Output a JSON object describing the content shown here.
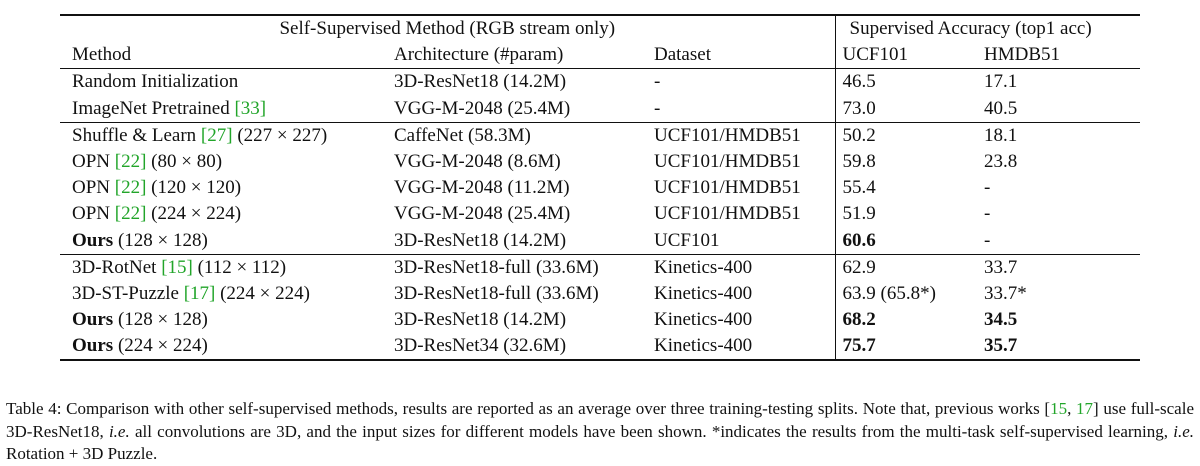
{
  "table": {
    "group_head_left": "Self-Supervised Method (RGB stream only)",
    "group_head_right": "Supervised Accuracy (top1 acc)",
    "col_method": "Method",
    "col_arch": "Architecture (#param)",
    "col_dataset": "Dataset",
    "col_ucf": "UCF101",
    "col_hmdb": "HMDB51",
    "rows": [
      {
        "m_b": "",
        "m_a": "Random Initialization",
        "m_r": "",
        "m_c": "",
        "arch": "3D-ResNet18 (14.2M)",
        "ds": "-",
        "ucf": "46.5",
        "hmdb": "17.1",
        "ucf_b": false,
        "hmdb_b": false
      },
      {
        "m_b": "",
        "m_a": "ImageNet Pretrained ",
        "m_r": "[33]",
        "m_c": "",
        "arch": "VGG-M-2048 (25.4M)",
        "ds": "-",
        "ucf": "73.0",
        "hmdb": "40.5",
        "ucf_b": false,
        "hmdb_b": false
      },
      {
        "m_b": "",
        "m_a": "Shuffle & Learn ",
        "m_r": "[27]",
        "m_c": " (227 × 227)",
        "arch": "CaffeNet (58.3M)",
        "ds": "UCF101/HMDB51",
        "ucf": "50.2",
        "hmdb": "18.1",
        "ucf_b": false,
        "hmdb_b": false
      },
      {
        "m_b": "",
        "m_a": "OPN ",
        "m_r": "[22]",
        "m_c": " (80 × 80)",
        "arch": "VGG-M-2048 (8.6M)",
        "ds": "UCF101/HMDB51",
        "ucf": "59.8",
        "hmdb": "23.8",
        "ucf_b": false,
        "hmdb_b": false
      },
      {
        "m_b": "",
        "m_a": "OPN ",
        "m_r": "[22]",
        "m_c": " (120 × 120)",
        "arch": "VGG-M-2048 (11.2M)",
        "ds": "UCF101/HMDB51",
        "ucf": "55.4",
        "hmdb": "-",
        "ucf_b": false,
        "hmdb_b": false
      },
      {
        "m_b": "",
        "m_a": "OPN ",
        "m_r": "[22]",
        "m_c": " (224 × 224)",
        "arch": "VGG-M-2048 (25.4M)",
        "ds": "UCF101/HMDB51",
        "ucf": "51.9",
        "hmdb": "-",
        "ucf_b": false,
        "hmdb_b": false
      },
      {
        "m_b": "Ours",
        "m_a": "",
        "m_r": "",
        "m_c": " (128 × 128)",
        "arch": "3D-ResNet18 (14.2M)",
        "ds": "UCF101",
        "ucf": "60.6",
        "hmdb": "-",
        "ucf_b": true,
        "hmdb_b": false
      },
      {
        "m_b": "",
        "m_a": "3D-RotNet ",
        "m_r": "[15]",
        "m_c": " (112 × 112)",
        "arch": "3D-ResNet18-full (33.6M)",
        "ds": "Kinetics-400",
        "ucf": "62.9",
        "hmdb": "33.7",
        "ucf_b": false,
        "hmdb_b": false
      },
      {
        "m_b": "",
        "m_a": "3D-ST-Puzzle ",
        "m_r": "[17]",
        "m_c": " (224 × 224)",
        "arch": "3D-ResNet18-full (33.6M)",
        "ds": "Kinetics-400",
        "ucf": "63.9 (65.8*)",
        "hmdb": "33.7*",
        "ucf_b": false,
        "hmdb_b": false
      },
      {
        "m_b": "Ours",
        "m_a": "",
        "m_r": "",
        "m_c": " (128 × 128)",
        "arch": "3D-ResNet18 (14.2M)",
        "ds": "Kinetics-400",
        "ucf": "68.2",
        "hmdb": "34.5",
        "ucf_b": true,
        "hmdb_b": true
      },
      {
        "m_b": "Ours",
        "m_a": "",
        "m_r": "",
        "m_c": " (224 × 224)",
        "arch": "3D-ResNet34 (32.6M)",
        "ds": "Kinetics-400",
        "ucf": "75.7",
        "hmdb": "35.7",
        "ucf_b": true,
        "hmdb_b": true
      }
    ]
  },
  "caption": {
    "t1": "Table 4: Comparison with other self-supervised methods, results are reported as an average over three training-testing splits. Note that, previous works [",
    "r1": "15",
    "t2": ", ",
    "r2": "17",
    "t3": "] use full-scale 3D-ResNet18, ",
    "ie1": "i.e.",
    "t4": " all convolutions are 3D, and the input sizes for different models have been shown. *indicates the results from the multi-task self-supervised learning, ",
    "ie2": "i.e.",
    "t5": " Rotation + 3D Puzzle."
  },
  "colors": {
    "text": "#111111",
    "reference": "#22a52a",
    "background": "#ffffff"
  }
}
